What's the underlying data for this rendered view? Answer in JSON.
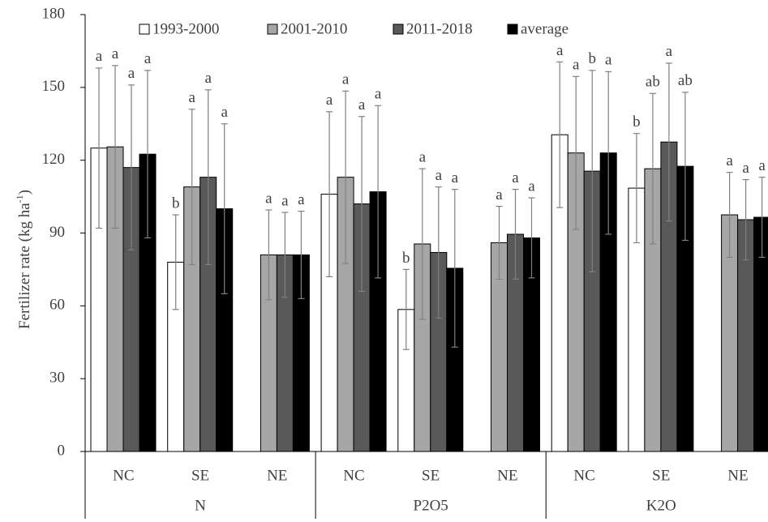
{
  "chart_data": {
    "type": "bar",
    "y_label": {
      "text": "Fertilizer rate (kg ha",
      "superscript": "-1",
      "suffix": ")"
    },
    "categories": [
      "NC",
      "SE",
      "NE",
      "NC",
      "SE",
      "NE",
      "NC",
      "SE",
      "NE"
    ],
    "groups": [
      "N",
      "P2O5",
      "K2O"
    ],
    "ylim": [
      0,
      180
    ],
    "yticks": [
      0,
      30,
      60,
      90,
      120,
      150,
      180
    ],
    "grid": false,
    "legend": "top",
    "series": [
      {
        "name": "1993-2000",
        "color": "#ffffff",
        "values": [
          125,
          78,
          null,
          106,
          58.5,
          null,
          130.5,
          108.5,
          null
        ],
        "errors": [
          33,
          19.5,
          null,
          34,
          16.5,
          null,
          30,
          22.5,
          null
        ],
        "letters": [
          "a",
          "b",
          null,
          "a",
          "b",
          null,
          "a",
          "b",
          null
        ]
      },
      {
        "name": "2001-2010",
        "color": "#a6a6a6",
        "values": [
          125.5,
          109,
          81,
          113,
          85.5,
          86,
          123,
          116.5,
          97.5
        ],
        "errors": [
          33.5,
          32,
          18.5,
          35.5,
          31,
          15,
          31.5,
          31,
          17.5
        ],
        "letters": [
          "a",
          "a",
          "a",
          "a",
          "a",
          "a",
          "a",
          "ab",
          "a"
        ]
      },
      {
        "name": "2011-2018",
        "color": "#595959",
        "values": [
          117,
          113,
          81,
          102,
          82,
          89.5,
          115.5,
          127.5,
          95.5
        ],
        "errors": [
          34,
          36,
          17.5,
          36,
          27,
          18.5,
          41.5,
          32.5,
          16.5
        ],
        "letters": [
          "a",
          "a",
          "a",
          "a",
          "a",
          "a",
          "b",
          "a",
          "a"
        ]
      },
      {
        "name": "average",
        "color": "#000000",
        "values": [
          122.5,
          100,
          81,
          107,
          75.5,
          88,
          123,
          117.5,
          96.5
        ],
        "errors": [
          34.5,
          35,
          18,
          35.5,
          32.5,
          16.5,
          33.5,
          30.5,
          16.5
        ],
        "letters": [
          "a",
          "a",
          "a",
          "a",
          "a",
          "a",
          "a",
          "ab",
          "a"
        ]
      }
    ]
  }
}
